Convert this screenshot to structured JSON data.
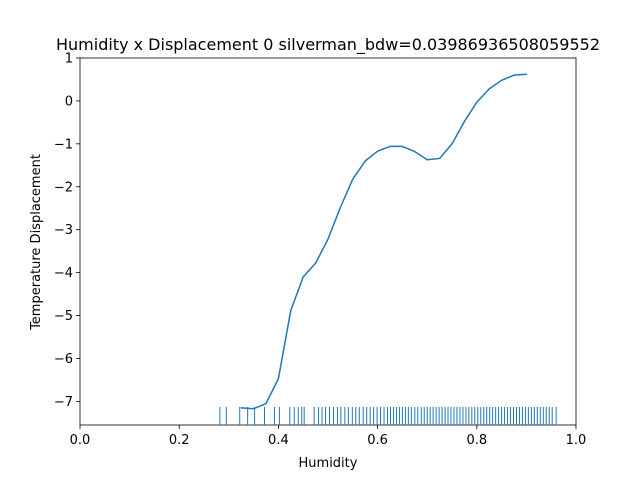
{
  "chart_data": {
    "type": "line",
    "title": "Humidity x Displacement 0 silverman_bdw=0.03986936508059552",
    "xlabel": "Humidity",
    "ylabel": "Temperature Displacement",
    "xlim": [
      0.0,
      1.0
    ],
    "ylim": [
      -7.55,
      1.0
    ],
    "xticks": [
      0.0,
      0.2,
      0.4,
      0.6,
      0.8,
      1.0
    ],
    "xtick_labels": [
      "0.0",
      "0.2",
      "0.4",
      "0.6",
      "0.8",
      "1.0"
    ],
    "yticks": [
      -7,
      -6,
      -5,
      -4,
      -3,
      -2,
      -1,
      0,
      1
    ],
    "ytick_labels": [
      "−7",
      "−6",
      "−5",
      "−4",
      "−3",
      "−2",
      "−1",
      "0",
      "1"
    ],
    "grid": false,
    "line_color": "#1f77b4",
    "series": [
      {
        "x": [
          0.325,
          0.35,
          0.375,
          0.4,
          0.425,
          0.45,
          0.475,
          0.5,
          0.525,
          0.55,
          0.575,
          0.6,
          0.625,
          0.65,
          0.675,
          0.7,
          0.725,
          0.75,
          0.775,
          0.8,
          0.825,
          0.85,
          0.875,
          0.9
        ],
        "y": [
          -7.15,
          -7.17,
          -7.05,
          -6.47,
          -4.88,
          -4.1,
          -3.78,
          -3.22,
          -2.48,
          -1.82,
          -1.4,
          -1.17,
          -1.06,
          -1.06,
          -1.18,
          -1.37,
          -1.34,
          -1.0,
          -0.48,
          -0.03,
          0.28,
          0.48,
          0.6,
          0.62
        ]
      }
    ],
    "rug": [
      0.282,
      0.295,
      0.322,
      0.338,
      0.352,
      0.372,
      0.392,
      0.402,
      0.423,
      0.432,
      0.44,
      0.447,
      0.452,
      0.472,
      0.481,
      0.488,
      0.495,
      0.503,
      0.511,
      0.519,
      0.526,
      0.534,
      0.541,
      0.549,
      0.556,
      0.563,
      0.571,
      0.578,
      0.585,
      0.592,
      0.599,
      0.606,
      0.613,
      0.62,
      0.626,
      0.632,
      0.638,
      0.644,
      0.65,
      0.656,
      0.662,
      0.668,
      0.675,
      0.681,
      0.688,
      0.694,
      0.7,
      0.706,
      0.712,
      0.718,
      0.724,
      0.73,
      0.736,
      0.742,
      0.748,
      0.754,
      0.76,
      0.766,
      0.772,
      0.778,
      0.784,
      0.79,
      0.796,
      0.802,
      0.808,
      0.814,
      0.82,
      0.826,
      0.832,
      0.838,
      0.844,
      0.85,
      0.856,
      0.862,
      0.868,
      0.874,
      0.88,
      0.886,
      0.892,
      0.898,
      0.904,
      0.91,
      0.916,
      0.922,
      0.928,
      0.934,
      0.94,
      0.946,
      0.952,
      0.96
    ],
    "rug_y": [
      -7.55,
      -7.13
    ]
  }
}
